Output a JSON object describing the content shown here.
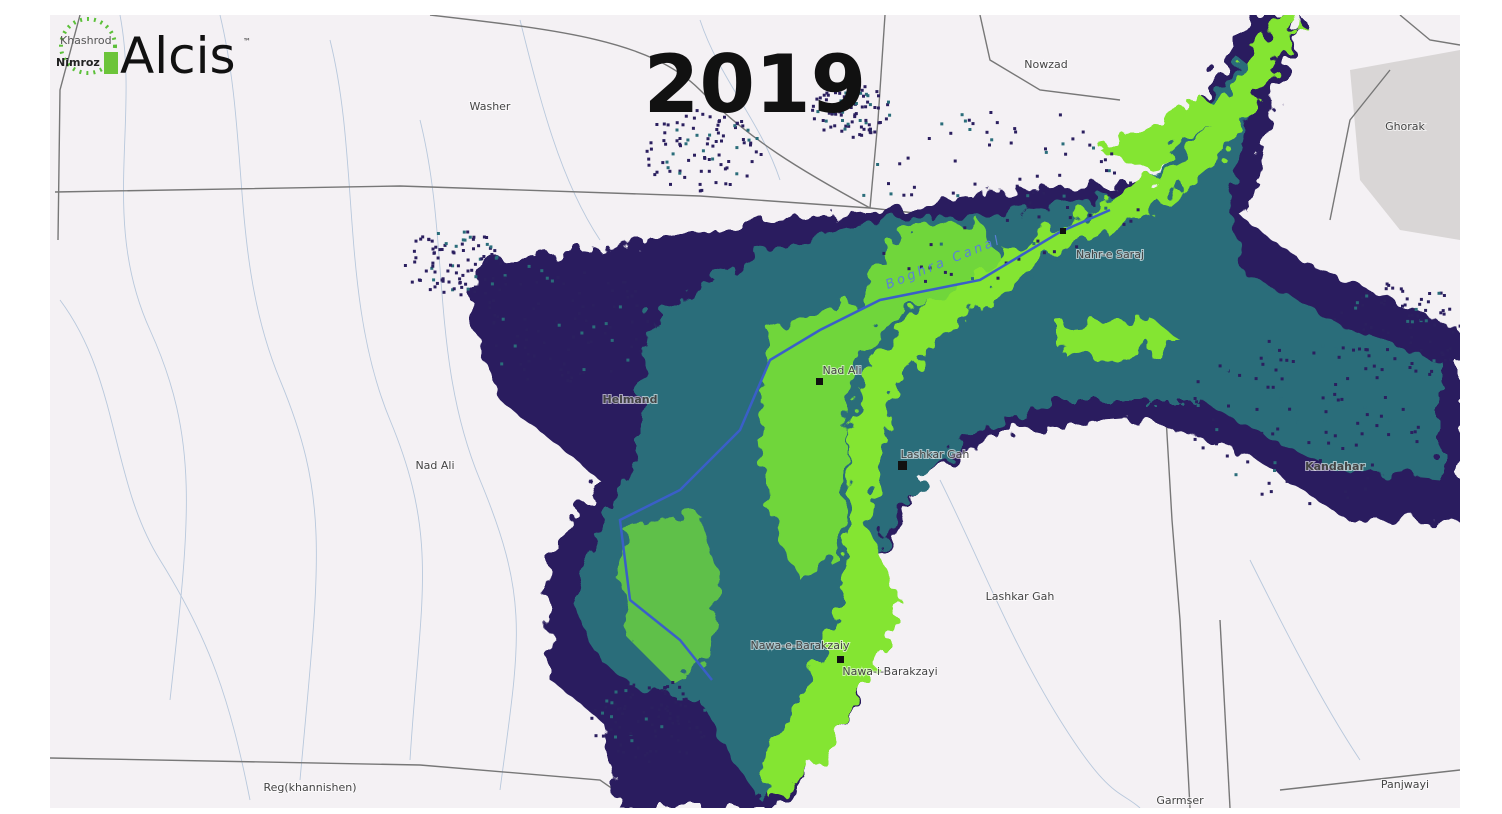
{
  "logo": {
    "place_top": "Khashrod",
    "place_bottom": "Nimroz",
    "brand": "Alcis",
    "trademark": "™"
  },
  "year": "2019",
  "labels": [
    "Washer",
    "Nowzad",
    "Ghorak",
    "Nahr-e Saraj",
    "Boghra Canal",
    "Nad Ali",
    "Helmand",
    "Nad Ali",
    "Lashkar Gah",
    "Lashkar Gah",
    "Nawa-e-Barakzaiy",
    "Nawa-i-Barakzayi",
    "Kandahar",
    "Reg(khannishen)",
    "Garmser",
    "Panjwayi"
  ]
}
